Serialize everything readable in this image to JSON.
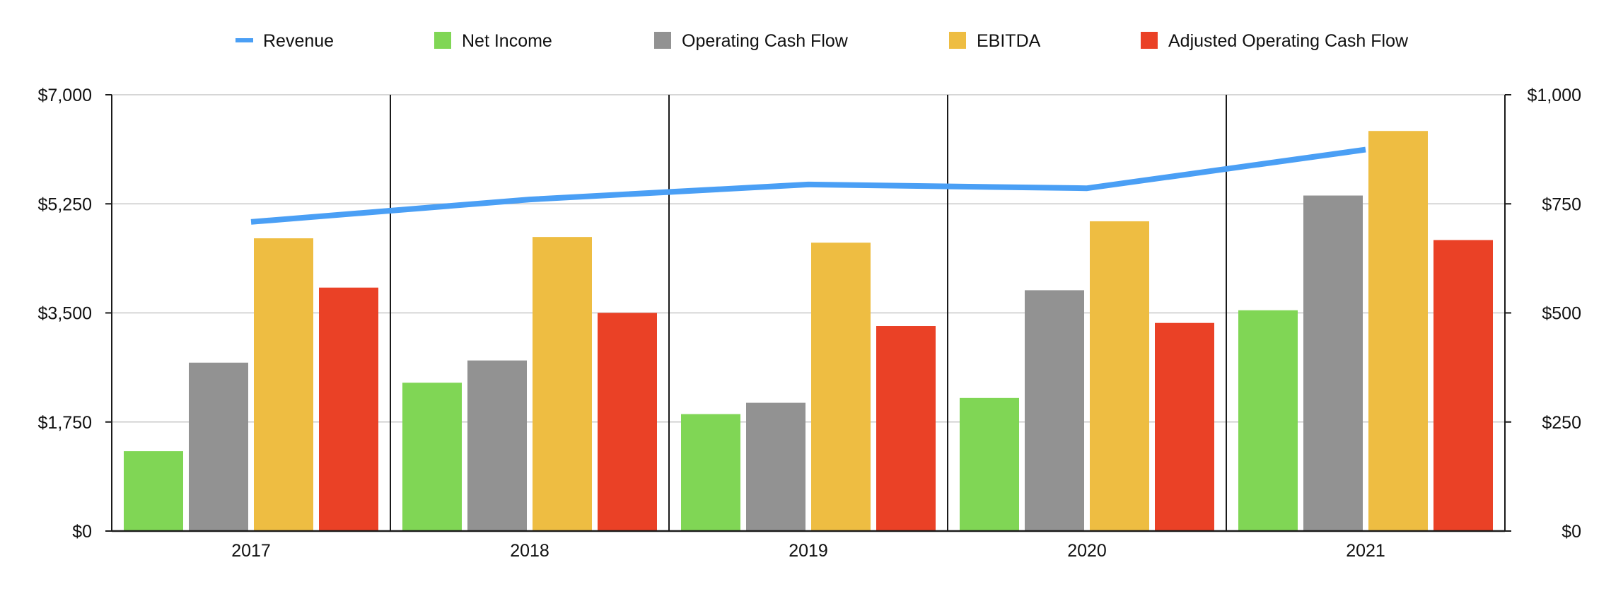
{
  "chart_data": {
    "type": "bar",
    "categories": [
      "2017",
      "2018",
      "2019",
      "2020",
      "2021"
    ],
    "legend_position": "top",
    "grid": true,
    "y_left": {
      "min": 0,
      "max": 7000,
      "ticks": [
        {
          "value": 0,
          "label": "$0"
        },
        {
          "value": 1750,
          "label": "$1,750"
        },
        {
          "value": 3500,
          "label": "$3,500"
        },
        {
          "value": 5250,
          "label": "$5,250"
        },
        {
          "value": 7000,
          "label": "$7,000"
        }
      ]
    },
    "y_right": {
      "min": 0,
      "max": 1000,
      "ticks": [
        {
          "value": 0,
          "label": "$0"
        },
        {
          "value": 250,
          "label": "$250"
        },
        {
          "value": 500,
          "label": "$500"
        },
        {
          "value": 750,
          "label": "$750"
        },
        {
          "value": 1000,
          "label": "$1,000"
        }
      ]
    },
    "line_series": [
      {
        "name": "Revenue",
        "color": "#4a9ff5",
        "axis": "left",
        "values": [
          4960,
          5320,
          5560,
          5500,
          6120
        ]
      }
    ],
    "bar_series": [
      {
        "name": "Net Income",
        "color": "#80d655",
        "axis": "right",
        "values": [
          183,
          340,
          268,
          305,
          506
        ]
      },
      {
        "name": "Operating Cash Flow",
        "color": "#929292",
        "axis": "right",
        "values": [
          386,
          391,
          294,
          552,
          769
        ]
      },
      {
        "name": "EBITDA",
        "color": "#eebd42",
        "axis": "right",
        "values": [
          671,
          674,
          661,
          710,
          917
        ]
      },
      {
        "name": "Adjusted Operating Cash Flow",
        "color": "#ea4126",
        "axis": "right",
        "values": [
          558,
          500,
          470,
          477,
          667
        ]
      }
    ]
  }
}
